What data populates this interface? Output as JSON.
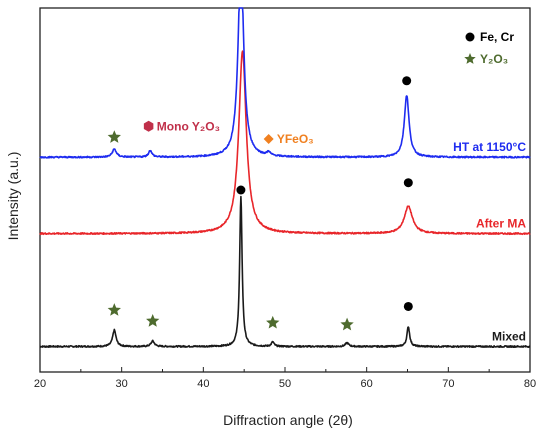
{
  "chart_data": {
    "type": "line",
    "xlabel": "Diffraction angle (2θ)",
    "ylabel": "Intensity (a.u.)",
    "xlim": [
      20,
      80
    ],
    "x_ticks": [
      "20",
      "30",
      "40",
      "50",
      "60",
      "70",
      "80"
    ],
    "y_ticks_shown": false,
    "grid": false,
    "legend": {
      "placement": "top-right",
      "entries": [
        {
          "label": "Fe, Cr",
          "marker": "circle",
          "color": "#000000"
        },
        {
          "label": "Y₂O₃",
          "marker": "star",
          "color": "#4e6b2e"
        }
      ]
    },
    "series": [
      {
        "name": "Mixed",
        "color": "#1a1a1a",
        "baseline": 0.07,
        "peaks": [
          {
            "x": 29.1,
            "height": 0.045,
            "width": 0.25
          },
          {
            "x": 33.8,
            "height": 0.015,
            "width": 0.25
          },
          {
            "x": 44.6,
            "height": 0.41,
            "width": 0.18
          },
          {
            "x": 48.5,
            "height": 0.012,
            "width": 0.2
          },
          {
            "x": 57.6,
            "height": 0.01,
            "width": 0.25
          },
          {
            "x": 65.1,
            "height": 0.055,
            "width": 0.2
          }
        ]
      },
      {
        "name": "After MA",
        "color": "#e8262a",
        "baseline": 0.38,
        "peaks": [
          {
            "x": 44.8,
            "height": 0.5,
            "width": 0.55
          },
          {
            "x": 65.1,
            "height": 0.075,
            "width": 0.6
          }
        ]
      },
      {
        "name": "HT at 1150°C",
        "color": "#1e2cf0",
        "baseline": 0.59,
        "peaks": [
          {
            "x": 29.1,
            "height": 0.022,
            "width": 0.3
          },
          {
            "x": 33.5,
            "height": 0.018,
            "width": 0.25
          },
          {
            "x": 44.6,
            "height": 0.55,
            "width": 0.4
          },
          {
            "x": 48.0,
            "height": 0.01,
            "width": 0.25
          },
          {
            "x": 64.9,
            "height": 0.17,
            "width": 0.35
          }
        ]
      }
    ],
    "markers": [
      {
        "x": 29.1,
        "y": 0.17,
        "symbol": "star",
        "color": "#4e6b2e"
      },
      {
        "x": 33.8,
        "y": 0.14,
        "symbol": "star",
        "color": "#4e6b2e"
      },
      {
        "x": 44.6,
        "y": 0.5,
        "symbol": "circle",
        "color": "#000000"
      },
      {
        "x": 48.5,
        "y": 0.135,
        "symbol": "star",
        "color": "#4e6b2e"
      },
      {
        "x": 57.6,
        "y": 0.13,
        "symbol": "star",
        "color": "#4e6b2e"
      },
      {
        "x": 65.1,
        "y": 0.18,
        "symbol": "circle",
        "color": "#000000"
      },
      {
        "x": 65.1,
        "y": 0.52,
        "symbol": "circle",
        "color": "#000000"
      },
      {
        "x": 29.1,
        "y": 0.645,
        "symbol": "star",
        "color": "#4e6b2e"
      },
      {
        "x": 33.3,
        "y": 0.675,
        "symbol": "hexagon",
        "color": "#c0304a"
      },
      {
        "x": 48.0,
        "y": 0.64,
        "symbol": "diamond",
        "color": "#f08020"
      },
      {
        "x": 64.9,
        "y": 0.8,
        "symbol": "circle",
        "color": "#000000"
      }
    ],
    "annotations": [
      {
        "text": "Mono Y₂O₃",
        "x": 34.3,
        "y": 0.675,
        "color": "#c0304a"
      },
      {
        "text": "YFeO₃",
        "x": 49.0,
        "y": 0.64,
        "color": "#f08020"
      }
    ]
  }
}
